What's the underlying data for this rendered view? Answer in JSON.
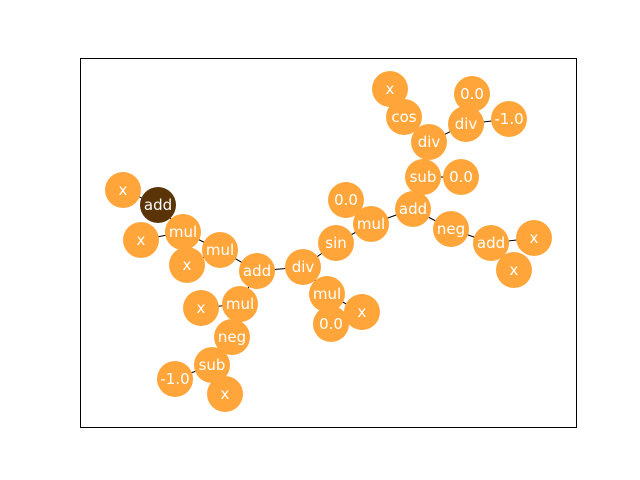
{
  "colors": {
    "node": "#ffa53a",
    "root": "#5a3307",
    "edge": "#000000",
    "label": "#ffffff",
    "frame": "#000000"
  },
  "tree": {
    "root": "n0",
    "nodes": [
      {
        "id": "n0",
        "label": "add",
        "is_root": true
      },
      {
        "id": "n1",
        "label": "x"
      },
      {
        "id": "n2",
        "label": "mul"
      },
      {
        "id": "n3",
        "label": "x"
      },
      {
        "id": "n4",
        "label": "mul"
      },
      {
        "id": "n5",
        "label": "x"
      },
      {
        "id": "n6",
        "label": "add"
      },
      {
        "id": "n7",
        "label": "mul"
      },
      {
        "id": "n8",
        "label": "x"
      },
      {
        "id": "n9",
        "label": "neg"
      },
      {
        "id": "n10",
        "label": "sub"
      },
      {
        "id": "n11",
        "label": "-1.0"
      },
      {
        "id": "n12",
        "label": "x"
      },
      {
        "id": "n13",
        "label": "div"
      },
      {
        "id": "n14",
        "label": "mul"
      },
      {
        "id": "n15",
        "label": "0.0"
      },
      {
        "id": "n16",
        "label": "x"
      },
      {
        "id": "n17",
        "label": "sin"
      },
      {
        "id": "n18",
        "label": "mul"
      },
      {
        "id": "n19",
        "label": "0.0"
      },
      {
        "id": "n20",
        "label": "add"
      },
      {
        "id": "n21",
        "label": "sub"
      },
      {
        "id": "n22",
        "label": "0.0"
      },
      {
        "id": "n23",
        "label": "div"
      },
      {
        "id": "n24",
        "label": "cos"
      },
      {
        "id": "n25",
        "label": "x"
      },
      {
        "id": "n26",
        "label": "div"
      },
      {
        "id": "n27",
        "label": "0.0"
      },
      {
        "id": "n28",
        "label": "-1.0"
      },
      {
        "id": "n29",
        "label": "neg"
      },
      {
        "id": "n30",
        "label": "add"
      },
      {
        "id": "n31",
        "label": "x"
      },
      {
        "id": "n32",
        "label": "x"
      }
    ],
    "edges": [
      [
        "n0",
        "n1"
      ],
      [
        "n0",
        "n2"
      ],
      [
        "n2",
        "n3"
      ],
      [
        "n2",
        "n4"
      ],
      [
        "n4",
        "n5"
      ],
      [
        "n4",
        "n6"
      ],
      [
        "n6",
        "n7"
      ],
      [
        "n7",
        "n8"
      ],
      [
        "n7",
        "n9"
      ],
      [
        "n9",
        "n10"
      ],
      [
        "n10",
        "n11"
      ],
      [
        "n10",
        "n12"
      ],
      [
        "n6",
        "n13"
      ],
      [
        "n13",
        "n14"
      ],
      [
        "n14",
        "n15"
      ],
      [
        "n14",
        "n16"
      ],
      [
        "n13",
        "n17"
      ],
      [
        "n17",
        "n18"
      ],
      [
        "n18",
        "n19"
      ],
      [
        "n18",
        "n20"
      ],
      [
        "n20",
        "n21"
      ],
      [
        "n21",
        "n22"
      ],
      [
        "n21",
        "n23"
      ],
      [
        "n23",
        "n24"
      ],
      [
        "n24",
        "n25"
      ],
      [
        "n23",
        "n26"
      ],
      [
        "n26",
        "n27"
      ],
      [
        "n26",
        "n28"
      ],
      [
        "n20",
        "n29"
      ],
      [
        "n29",
        "n30"
      ],
      [
        "n30",
        "n31"
      ],
      [
        "n30",
        "n32"
      ]
    ]
  }
}
